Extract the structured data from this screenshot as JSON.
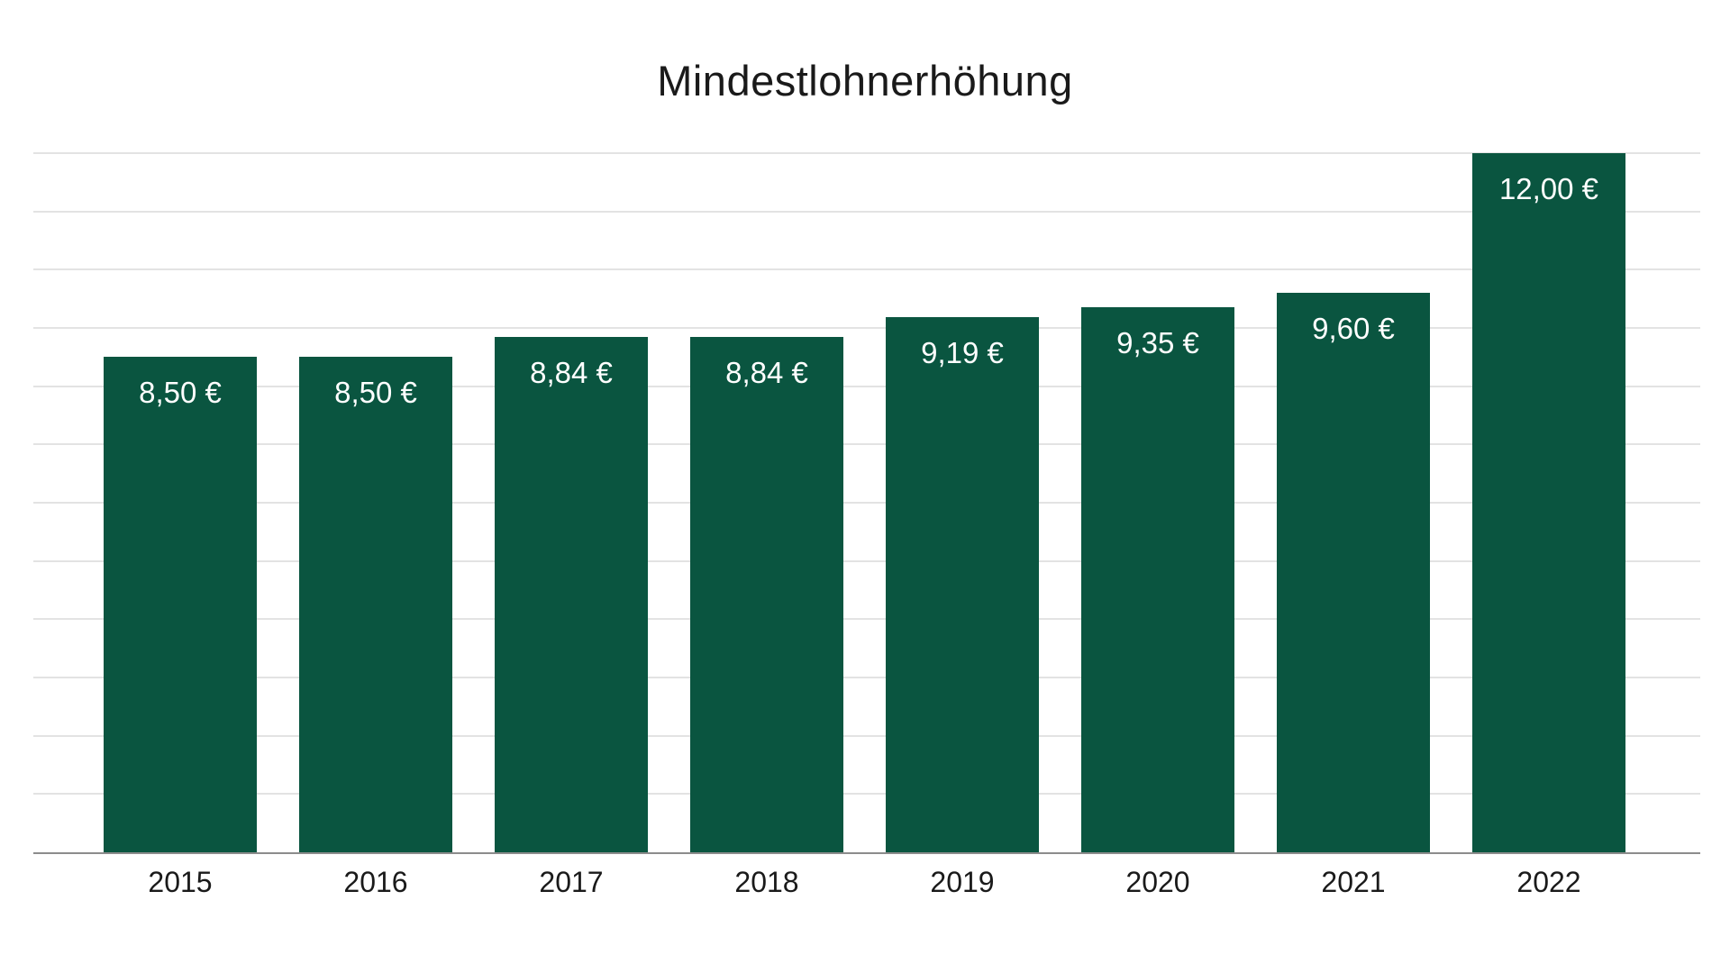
{
  "chart_data": {
    "type": "bar",
    "title": "Mindestlohnerhöhung",
    "categories": [
      "2015",
      "2016",
      "2017",
      "2018",
      "2019",
      "2020",
      "2021",
      "2022"
    ],
    "values": [
      8.5,
      8.5,
      8.84,
      8.84,
      9.19,
      9.35,
      9.6,
      12.0
    ],
    "value_labels": [
      "8,50 €",
      "8,50 €",
      "8,84 €",
      "8,84 €",
      "9,19 €",
      "9,35 €",
      "9,60 €",
      "12,00 €"
    ],
    "xlabel": "",
    "ylabel": "",
    "ylim": [
      0,
      12
    ],
    "gridline_step": 1,
    "grid": "horizontal-only",
    "legend_position": "none",
    "value_label_position": "inside-top",
    "colors": {
      "bar": "#0a5540",
      "bar_label_text": "#ffffff",
      "gridline": "#e3e3e3",
      "axis_line": "#8c8c8c",
      "title_text": "#1a1a1a",
      "axis_label_text": "#1a1a1a",
      "background": "#ffffff"
    }
  }
}
